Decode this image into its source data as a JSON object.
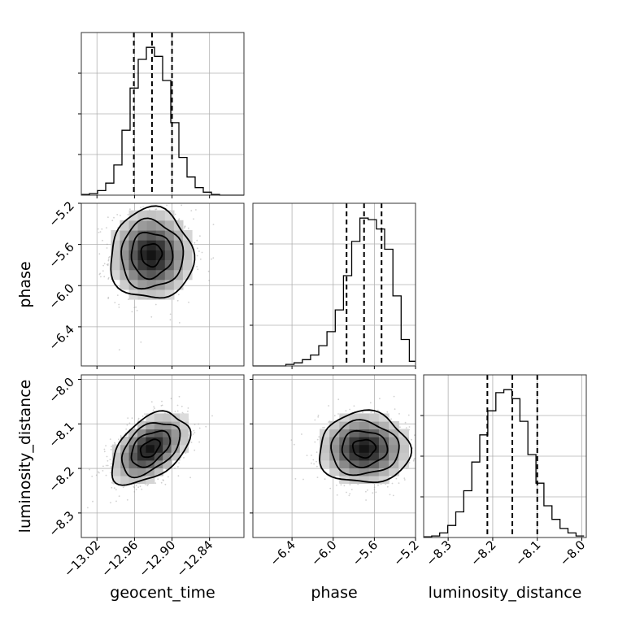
{
  "chart_data": {
    "type": "corner",
    "parameters": [
      {
        "name": "geocent_time",
        "range": [
          -13.045,
          -12.785
        ],
        "ticks": [
          -13.02,
          -12.96,
          -12.9,
          -12.84
        ],
        "tick_labels": [
          "−13.02",
          "−12.96",
          "−12.90",
          "−12.84"
        ],
        "quantiles": [
          -12.961,
          -12.932,
          -12.9
        ],
        "hist_bin_edges": [
          -13.045,
          -13.032,
          -13.019,
          -13.006,
          -12.993,
          -12.98,
          -12.967,
          -12.954,
          -12.941,
          -12.928,
          -12.915,
          -12.902,
          -12.889,
          -12.876,
          -12.863,
          -12.85,
          -12.837,
          -12.824,
          -12.811,
          -12.798,
          -12.785
        ],
        "hist_counts": [
          0.5,
          1,
          3,
          8,
          20,
          43,
          71,
          90,
          98,
          92,
          76,
          48,
          25,
          12,
          5,
          2,
          0.5,
          0,
          0,
          0
        ]
      },
      {
        "name": "phase",
        "range": [
          -6.78,
          -5.2
        ],
        "ticks": [
          -6.4,
          -6.0,
          -5.6,
          -5.2
        ],
        "tick_labels": [
          "−6.4",
          "−6.0",
          "−5.6",
          "−5.2"
        ],
        "quantiles": [
          -5.87,
          -5.7,
          -5.53
        ],
        "hist_bin_edges": [
          -6.78,
          -6.7,
          -6.62,
          -6.54,
          -6.46,
          -6.38,
          -6.3,
          -6.22,
          -6.14,
          -6.06,
          -5.98,
          -5.9,
          -5.82,
          -5.74,
          -5.66,
          -5.58,
          -5.5,
          -5.42,
          -5.34,
          -5.26,
          -5.2
        ],
        "hist_counts": [
          0,
          0,
          0,
          0,
          1,
          2,
          4,
          7,
          13,
          22,
          36,
          58,
          80,
          95,
          94,
          88,
          75,
          45,
          17,
          3
        ]
      },
      {
        "name": "luminosity_distance",
        "range": [
          -8.355,
          -7.99
        ],
        "ticks": [
          -8.3,
          -8.2,
          -8.1,
          -8.0
        ],
        "tick_labels": [
          "−8.3",
          "−8.2",
          "−8.1",
          "−8.0"
        ],
        "quantiles": [
          -8.212,
          -8.156,
          -8.1
        ],
        "hist_bin_edges": [
          -8.355,
          -8.337,
          -8.319,
          -8.301,
          -8.283,
          -8.265,
          -8.247,
          -8.229,
          -8.211,
          -8.193,
          -8.175,
          -8.157,
          -8.139,
          -8.121,
          -8.103,
          -8.085,
          -8.067,
          -8.049,
          -8.031,
          -8.013,
          -7.995
        ],
        "hist_counts": [
          0.5,
          1,
          3,
          8,
          17,
          31,
          50,
          68,
          84,
          96,
          98,
          92,
          77,
          55,
          36,
          21,
          12,
          6,
          3,
          1
        ]
      }
    ],
    "pairs": [
      {
        "x": "geocent_time",
        "y": "phase",
        "center": [
          -12.933,
          -5.7
        ],
        "sigma": [
          0.033,
          0.22
        ],
        "correlation": 0.0
      },
      {
        "x": "geocent_time",
        "y": "luminosity_distance",
        "center": [
          -12.935,
          -8.155
        ],
        "sigma": [
          0.031,
          0.04
        ],
        "correlation": 0.45
      },
      {
        "x": "phase",
        "y": "luminosity_distance",
        "center": [
          -5.7,
          -8.155
        ],
        "sigma": [
          0.22,
          0.04
        ],
        "correlation": 0.0
      }
    ],
    "contour_sigma_levels": [
      0.5,
      1.0,
      1.5,
      2.0
    ],
    "scatter_points_per_panel": 900,
    "grid": true,
    "colors": {
      "ink": "#000000",
      "grid": "#b0b0b0",
      "points": "#9a9a9a"
    }
  }
}
